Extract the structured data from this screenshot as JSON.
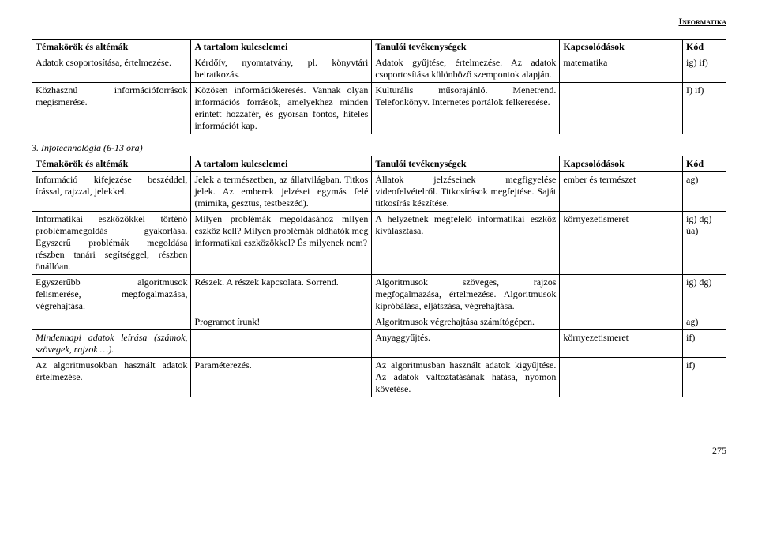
{
  "doc_header": "Informatika",
  "table1": {
    "headers": [
      "Témakörök és altémák",
      "A tartalom kulcselemei",
      "Tanulói tevékenységek",
      "Kapcsolódások",
      "Kód"
    ],
    "rows": [
      {
        "topic": "Adatok csoportosítása, értelmezése.",
        "content": "Kérdőív, nyomtatvány, pl. könyvtári beiratkozás.",
        "activity": "Adatok gyűjtése, értelmezése. Az adatok csoportosítása különböző szempontok alapján.",
        "link": "matematika",
        "code": "ig) if)"
      },
      {
        "topic_a": "Közhasznú",
        "topic_b": "információforrások",
        "topic_c": "megismerése.",
        "content": "Közösen információkeresés. Vannak olyan információs források, amelyekhez minden érintett hozzáfér, és gyorsan fontos, hiteles információt kap.",
        "activity": "Kulturális műsorajánló. Menetrend. Telefonkönyv. Internetes portálok felkeresése.",
        "link": "",
        "code": "I) if)"
      }
    ]
  },
  "section2_title": "3. Infotechnológia (6-13 óra)",
  "table2": {
    "headers": [
      "Témakörök és altémák",
      "A tartalom kulcselemei",
      "Tanulói tevékenységek",
      "Kapcsolódások",
      "Kód"
    ],
    "rows": [
      {
        "topic": "Információ kifejezése beszéddel, írással, rajzzal, jelekkel.",
        "content": "Jelek a természetben, az állatvilágban. Titkos jelek. Az emberek jelzései egymás felé (mimika, gesztus, testbeszéd).",
        "activity": "Állatok jelzéseinek megfigyelése videofelvételről. Titkosírások megfejtése. Saját titkosírás készítése.",
        "link": "ember és természet",
        "code": "ag)"
      },
      {
        "topic": "Informatikai eszközökkel történő problémamegoldás gyakorlása. Egyszerű problémák megoldása részben tanári segítséggel, részben önállóan.",
        "content": "Milyen problémák megoldásához milyen eszköz kell? Milyen problémák oldhatók meg informatikai eszközökkel? És milyenek nem?",
        "activity": "A helyzetnek megfelelő informatikai eszköz kiválasztása.",
        "link": "környezetismeret",
        "code": "ig) dg) úa)"
      },
      {
        "r3_topic_a": "Egyszerűbb",
        "r3_topic_b": "algoritmusok",
        "r3_topic_c": "felismerése,",
        "r3_topic_d": "megfogalmazása,",
        "r3_topic_e": "végrehajtása.",
        "r3c1": "Részek. A részek kapcsolata. Sorrend.",
        "r3a1": "Algoritmusok szöveges, rajzos megfogalmazása, értelmezése. Algoritmusok kipróbálása, eljátszása, végrehajtása.",
        "r3l1": "",
        "r3k1": "ig) dg)",
        "r3c2": "Programot írunk!",
        "r3a2": "Algoritmusok végrehajtása számítógépen.",
        "r3l2": "",
        "r3k2": "ag)"
      },
      {
        "topic": "Mindennapi adatok leírása (számok, szövegek, rajzok …).",
        "content": "",
        "activity": "Anyaggyűjtés.",
        "link": "környezetismeret",
        "code": "if)"
      },
      {
        "topic": "Az algoritmusokban használt adatok értelmezése.",
        "content": "Paraméterezés.",
        "activity": "Az algoritmusban használt adatok kigyűjtése. Az adatok változtatásának hatása, nyomon követése.",
        "link": "",
        "code": "if)"
      }
    ]
  },
  "page_number": "275"
}
